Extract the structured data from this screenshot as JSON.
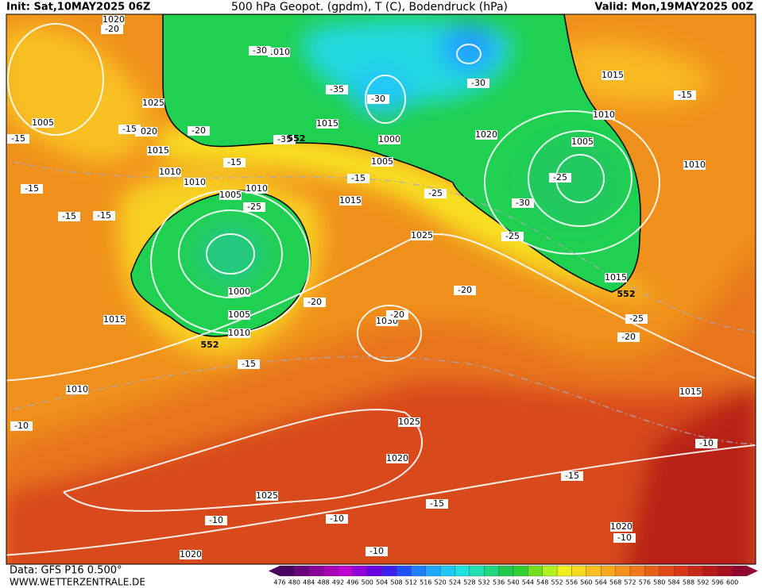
{
  "header": {
    "init": "Init: Sat,10MAY2025 06Z",
    "title": "500 hPa Geopot. (gpdm), T (C), Bodendruck (hPa)",
    "valid": "Valid: Mon,19MAY2025 00Z"
  },
  "footer": {
    "data": "Data: GFS P16 0.500°",
    "site": "WWW.WETTERZENTRALE.DE"
  },
  "scale": {
    "labels": [
      476,
      480,
      484,
      488,
      492,
      496,
      500,
      504,
      508,
      512,
      516,
      520,
      524,
      528,
      532,
      536,
      540,
      544,
      548,
      552,
      556,
      560,
      564,
      568,
      572,
      576,
      580,
      584,
      588,
      592,
      596,
      600
    ],
    "colors": [
      "#4b0060",
      "#6a007a",
      "#8b0096",
      "#a800b4",
      "#c000d0",
      "#9000d8",
      "#6a00e0",
      "#4020f0",
      "#2050ff",
      "#2080ff",
      "#20a8ff",
      "#20c8f8",
      "#20e0e0",
      "#20e0b0",
      "#20d880",
      "#20c850",
      "#30d030",
      "#70e020",
      "#b0f020",
      "#f0f020",
      "#f8d820",
      "#f8c020",
      "#f8a820",
      "#f89020",
      "#f07818",
      "#e86018",
      "#e04818",
      "#d83818",
      "#c82818",
      "#b81818",
      "#a81020",
      "#900830"
    ]
  },
  "map": {
    "pressure_labels": [
      "1020",
      "1025",
      "1005",
      "1020",
      "1015",
      "1010",
      "1010",
      "1010",
      "1015",
      "1000",
      "1005",
      "1020",
      "1010",
      "1005",
      "1015",
      "1010",
      "1005",
      "1010",
      "1015",
      "1025",
      "1000",
      "1005",
      "1010",
      "1015",
      "1030",
      "1015",
      "1010",
      "1025",
      "1020",
      "1025",
      "1020",
      "1020",
      "1015"
    ],
    "temperature_labels": [
      "-20",
      "-30",
      "-35",
      "-30",
      "-30",
      "-15",
      "-15",
      "-15",
      "-20",
      "-15",
      "-15",
      "-15",
      "-15",
      "-15",
      "-25",
      "-25",
      "-30",
      "-25",
      "-25",
      "-20",
      "-20",
      "-25",
      "-20",
      "-15",
      "-10",
      "-10",
      "-15",
      "-15",
      "-10",
      "-10",
      "-10",
      "-10",
      "-20",
      "-35"
    ],
    "geopotential_labels": [
      "552",
      "552",
      "552"
    ]
  }
}
